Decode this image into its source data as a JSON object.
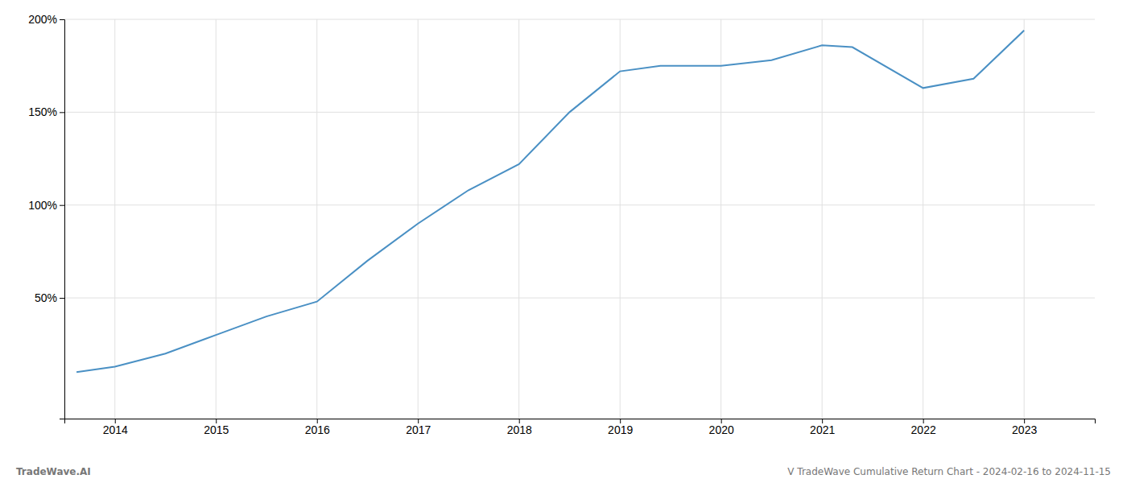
{
  "chart_data": {
    "type": "line",
    "x": [
      2013.62,
      2014.0,
      2014.5,
      2015.0,
      2015.5,
      2016.0,
      2016.5,
      2017.0,
      2017.5,
      2018.0,
      2018.5,
      2019.0,
      2019.4,
      2020.0,
      2020.5,
      2021.0,
      2021.3,
      2022.0,
      2022.5,
      2023.0
    ],
    "values": [
      10,
      13,
      20,
      30,
      40,
      48,
      70,
      90,
      108,
      122,
      150,
      172,
      175,
      175,
      178,
      186,
      185,
      163,
      168,
      194
    ],
    "color": "#4a90c4",
    "xlim": [
      2013.5,
      2023.7
    ],
    "ylim": [
      -15,
      200
    ],
    "xticks": [
      2014,
      2015,
      2016,
      2017,
      2018,
      2019,
      2020,
      2021,
      2022,
      2023
    ],
    "yticks": [
      {
        "value": 50,
        "label": "50%"
      },
      {
        "value": 100,
        "label": "100%"
      },
      {
        "value": 150,
        "label": "150%"
      },
      {
        "value": 200,
        "label": "200%"
      }
    ],
    "grid": true,
    "annotations": [
      "TradeWave.AI",
      "V TradeWave Cumulative Return Chart - 2024-02-16 to 2024-11-15"
    ]
  }
}
